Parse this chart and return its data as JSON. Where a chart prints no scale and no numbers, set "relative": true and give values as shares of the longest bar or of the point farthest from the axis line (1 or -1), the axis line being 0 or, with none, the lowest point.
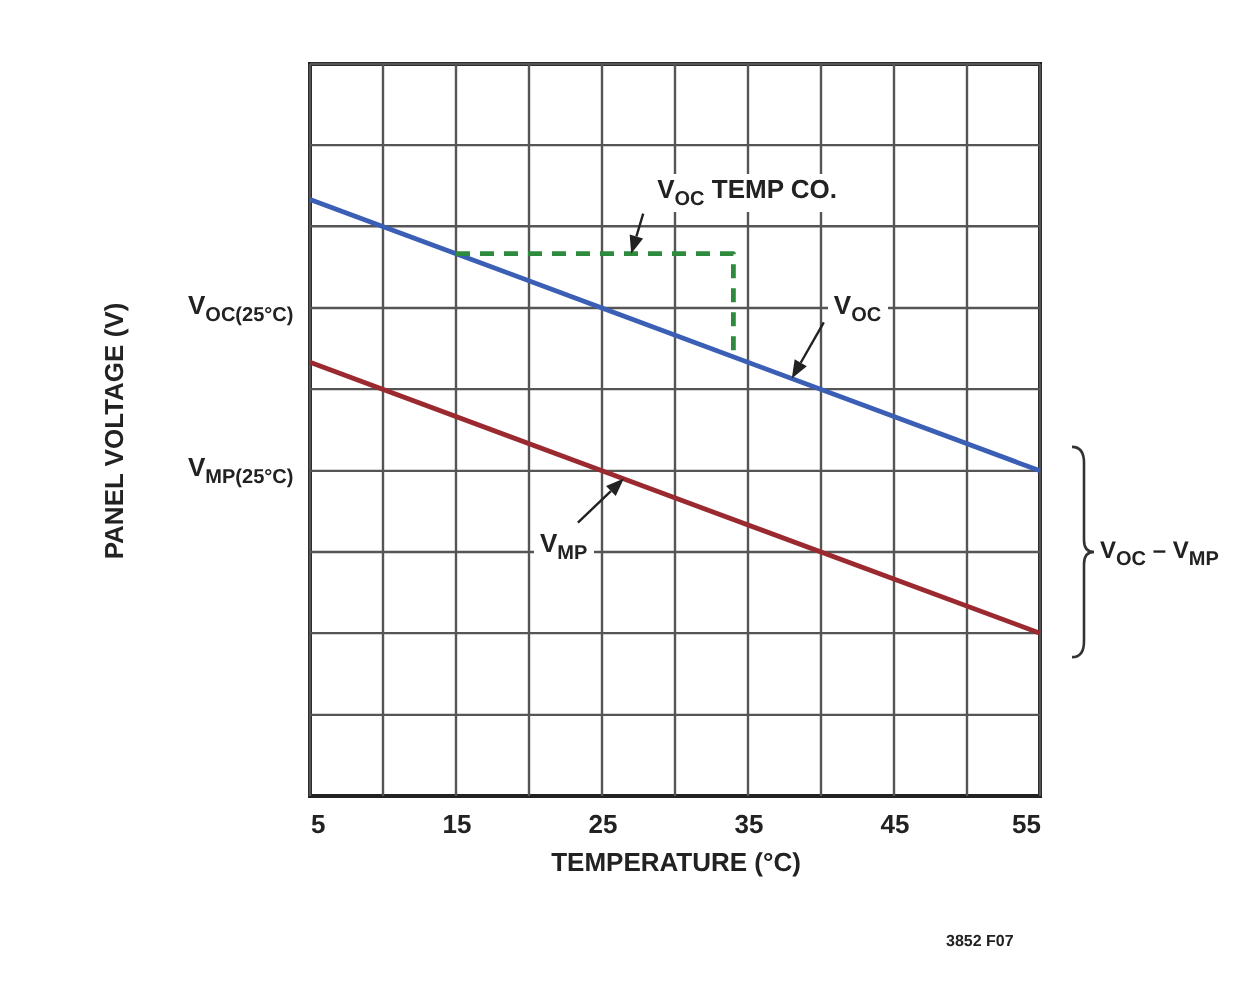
{
  "chart_data": {
    "type": "line",
    "relative": true,
    "xlabel": "TEMPERATURE (°C)",
    "xlim": [
      5,
      55
    ],
    "xticks": [
      5,
      {
        "value": 10,
        "label": null
      },
      15,
      {
        "value": 20,
        "label": null
      },
      25,
      {
        "value": 30,
        "label": null
      },
      35,
      {
        "value": 40,
        "label": null
      },
      45,
      {
        "value": 50,
        "label": null
      },
      55
    ],
    "grid": "x",
    "ref_lines": [
      {
        "axis": "y",
        "value": 0.136
      },
      {
        "axis": "y",
        "value": 0.273
      },
      {
        "axis": "y",
        "value": 0.409
      },
      {
        "axis": "y",
        "value": 0.545,
        "label": "V$_{MP(25°C)}$"
      },
      {
        "axis": "y",
        "value": 0.682
      },
      {
        "axis": "y",
        "value": 0.818,
        "label": "V$_{OC(25°C)}$"
      },
      {
        "axis": "y",
        "value": 0.955
      },
      {
        "axis": "y",
        "value": 1.091
      },
      {
        "axis": "y",
        "value": 1.227
      }
    ],
    "series": [
      {
        "color": "#3b5fb5",
        "x": [
          5,
          25,
          55
        ],
        "values": [
          1,
          0.818,
          0.545
        ]
      },
      {
        "color": "#9b2a30",
        "x": [
          5,
          25,
          55
        ],
        "values": [
          0.727,
          0.545,
          0.273
        ]
      },
      {
        "color": "#2e8b3e",
        "line_style": "dashed",
        "x": [
          15,
          34,
          34
        ],
        "values": [
          0.909,
          0.909,
          0.736
        ]
      }
    ],
    "annotations": [
      {
        "text": "V$_{OC}$ TEMP CO.",
        "x": 27,
        "y": 0.909
      },
      {
        "text": "V$_{OC}$",
        "x": 38,
        "y": 0.7
      },
      {
        "text": "V$_{MP}$",
        "x": 26.5,
        "y": 0.532
      },
      "V$_{OC}$ – V$_{MP}$",
      "3852 F07",
      "PANEL VOLTAGE (V)"
    ]
  }
}
